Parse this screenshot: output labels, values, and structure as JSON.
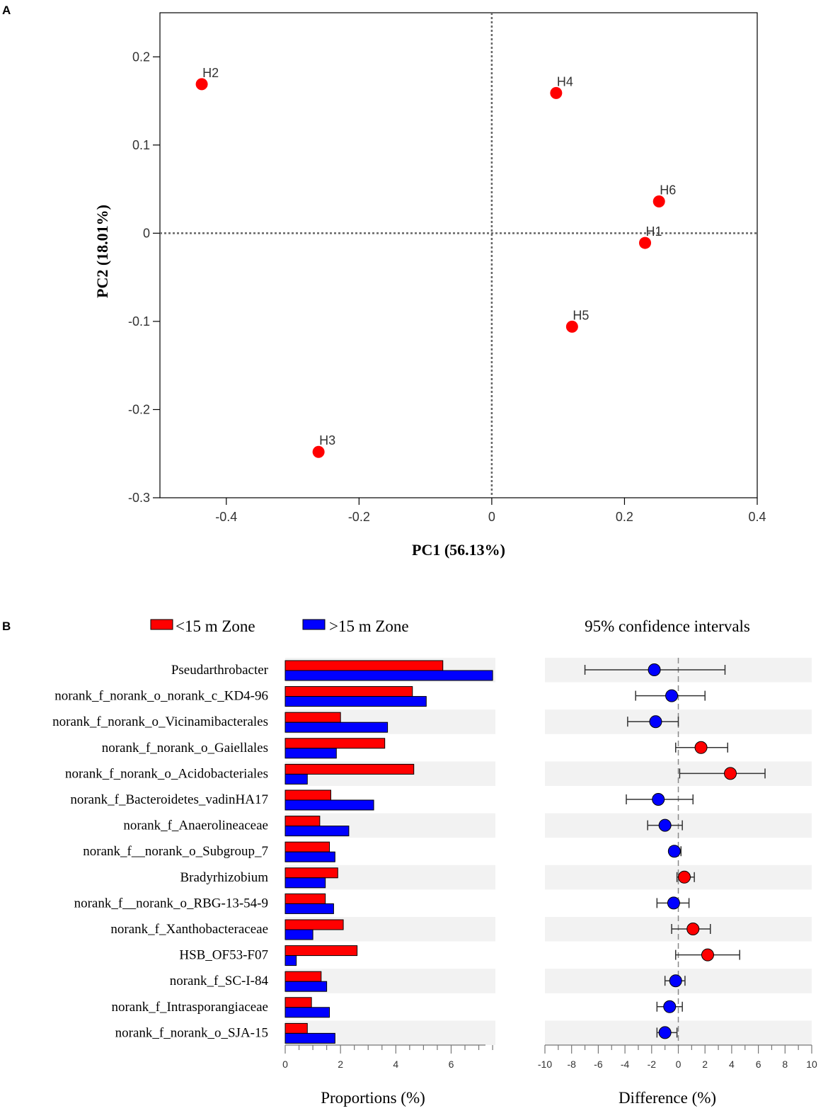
{
  "panels": {
    "a_label": "A",
    "b_label": "B"
  },
  "chart_data": [
    {
      "type": "scatter",
      "title": "",
      "xlabel": "PC1 (56.13%)",
      "ylabel": "PC2 (18.01%)",
      "xlim": [
        -0.5,
        0.4
      ],
      "ylim": [
        -0.3,
        0.25
      ],
      "xticks": [
        -0.4,
        -0.2,
        0,
        0.2,
        0.4
      ],
      "xtick_labels": [
        "-0.4",
        "-0.2",
        "0",
        "0.2",
        "0.4"
      ],
      "yticks": [
        -0.3,
        -0.2,
        -0.1,
        0,
        0.1,
        0.2
      ],
      "ytick_labels": [
        "-0.3",
        "-0.2",
        "-0.1",
        "0",
        "0.1",
        "0.2"
      ],
      "reference_lines": {
        "x": 0,
        "y": 0,
        "style": "dotted"
      },
      "point_color": "#ff0000",
      "points": [
        {
          "label": "H2",
          "x": -0.437,
          "y": 0.169
        },
        {
          "label": "H4",
          "x": 0.097,
          "y": 0.159
        },
        {
          "label": "H6",
          "x": 0.252,
          "y": 0.036
        },
        {
          "label": "H1",
          "x": 0.231,
          "y": -0.011
        },
        {
          "label": "H5",
          "x": 0.121,
          "y": -0.106
        },
        {
          "label": "H3",
          "x": -0.261,
          "y": -0.248
        }
      ]
    },
    {
      "type": "bar",
      "orientation": "horizontal",
      "title": "",
      "xlabel": "Proportions (%)",
      "xlim": [
        0,
        7.6
      ],
      "xticks": [
        0,
        2,
        4,
        6
      ],
      "xtick_labels": [
        "0",
        "2",
        "4",
        "6"
      ],
      "legend": [
        {
          "name": "<15 m Zone",
          "color": "#ff0000"
        },
        {
          "name": ">15 m Zone",
          "color": "#0000ff"
        }
      ],
      "categories": [
        "Pseudarthrobacter",
        "norank_f_norank_o_norank_c_KD4-96",
        "norank_f_norank_o_Vicinamibacterales",
        "norank_f_norank_o_Gaiellales",
        "norank_f_norank_o_Acidobacteriales",
        "norank_f_Bacteroidetes_vadinHA17",
        "norank_f_Anaerolineaceae",
        "norank_f__norank_o_Subgroup_7",
        "Bradyrhizobium",
        "norank_f__norank_o_RBG-13-54-9",
        "norank_f_Xanthobacteraceae",
        "HSB_OF53-F07",
        "norank_f_SC-I-84",
        "norank_f_Intrasporangiaceae",
        "norank_f_norank_o_SJA-15"
      ],
      "series": [
        {
          "name": "<15 m Zone",
          "values": [
            5.7,
            4.6,
            2.0,
            3.6,
            4.65,
            1.65,
            1.25,
            1.6,
            1.9,
            1.45,
            2.1,
            2.6,
            1.3,
            0.95,
            0.8
          ]
        },
        {
          "name": ">15 m Zone",
          "values": [
            7.5,
            5.1,
            3.7,
            1.85,
            0.8,
            3.2,
            2.3,
            1.8,
            1.45,
            1.75,
            1.0,
            0.4,
            1.5,
            1.6,
            1.8
          ]
        }
      ]
    },
    {
      "type": "scatter",
      "subtype": "confidence_interval",
      "title": "95% confidence intervals",
      "xlabel": "Difference (%)",
      "xlim": [
        -10,
        10
      ],
      "xticks": [
        -10,
        -8,
        -6,
        -4,
        -2,
        0,
        2,
        4,
        6,
        8,
        10
      ],
      "xtick_labels": [
        "-10",
        "-8",
        "-6",
        "-4",
        "-2",
        "0",
        "2",
        "4",
        "6",
        "8",
        "10"
      ],
      "reference_line": {
        "x": 0,
        "style": "dashed"
      },
      "points": [
        {
          "diff": -1.8,
          "low": -7.0,
          "high": 3.5,
          "color": "#0000ff"
        },
        {
          "diff": -0.5,
          "low": -3.2,
          "high": 2.0,
          "color": "#0000ff"
        },
        {
          "diff": -1.7,
          "low": -3.8,
          "high": 0.0,
          "color": "#0000ff"
        },
        {
          "diff": 1.7,
          "low": -0.2,
          "high": 3.7,
          "color": "#ff0000"
        },
        {
          "diff": 3.9,
          "low": 0.1,
          "high": 6.5,
          "color": "#ff0000"
        },
        {
          "diff": -1.5,
          "low": -3.9,
          "high": 1.1,
          "color": "#0000ff"
        },
        {
          "diff": -1.0,
          "low": -2.3,
          "high": 0.3,
          "color": "#0000ff"
        },
        {
          "diff": -0.3,
          "low": -0.6,
          "high": 0.2,
          "color": "#0000ff"
        },
        {
          "diff": 0.45,
          "low": -0.1,
          "high": 1.2,
          "color": "#ff0000"
        },
        {
          "diff": -0.35,
          "low": -1.6,
          "high": 0.8,
          "color": "#0000ff"
        },
        {
          "diff": 1.1,
          "low": -0.5,
          "high": 2.4,
          "color": "#ff0000"
        },
        {
          "diff": 2.2,
          "low": -0.2,
          "high": 4.6,
          "color": "#ff0000"
        },
        {
          "diff": -0.2,
          "low": -1.0,
          "high": 0.5,
          "color": "#0000ff"
        },
        {
          "diff": -0.65,
          "low": -1.6,
          "high": 0.3,
          "color": "#0000ff"
        },
        {
          "diff": -1.0,
          "low": -1.6,
          "high": -0.1,
          "color": "#0000ff"
        }
      ]
    }
  ]
}
